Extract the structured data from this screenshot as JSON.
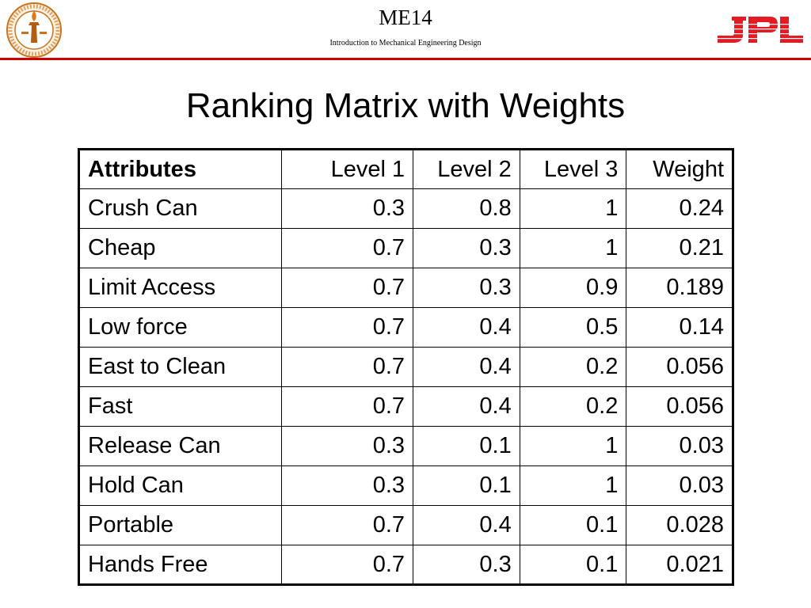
{
  "header": {
    "course_code": "ME14",
    "course_name": "Introduction to Mechanical Engineering Design",
    "left_logo": "caltech-seal-icon",
    "right_logo": "jpl-logo-icon",
    "rule_color": "#cc0000",
    "jpl_color": "#e31b23"
  },
  "title": "Ranking Matrix with Weights",
  "table": {
    "columns": [
      "Attributes",
      "Level 1",
      "Level 2",
      "Level 3",
      "Weight"
    ],
    "rows": [
      [
        "Crush Can",
        "0.3",
        "0.8",
        "1",
        "0.24"
      ],
      [
        "Cheap",
        "0.7",
        "0.3",
        "1",
        "0.21"
      ],
      [
        "Limit Access",
        "0.7",
        "0.3",
        "0.9",
        "0.189"
      ],
      [
        "Low force",
        "0.7",
        "0.4",
        "0.5",
        "0.14"
      ],
      [
        "East to Clean",
        "0.7",
        "0.4",
        "0.2",
        "0.056"
      ],
      [
        "Fast",
        "0.7",
        "0.4",
        "0.2",
        "0.056"
      ],
      [
        "Release Can",
        "0.3",
        "0.1",
        "1",
        "0.03"
      ],
      [
        "Hold Can",
        "0.3",
        "0.1",
        "1",
        "0.03"
      ],
      [
        "Portable",
        "0.7",
        "0.4",
        "0.1",
        "0.028"
      ],
      [
        "Hands Free",
        "0.7",
        "0.3",
        "0.1",
        "0.021"
      ]
    ]
  }
}
